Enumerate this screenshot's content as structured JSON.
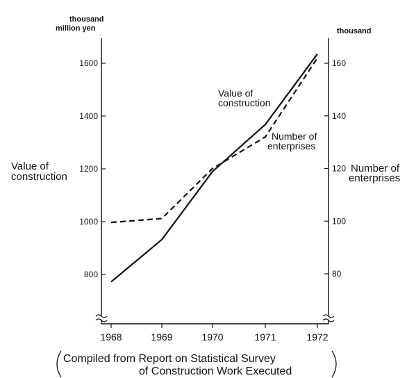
{
  "chart_data": {
    "type": "line",
    "categories": [
      "1968",
      "1969",
      "1970",
      "1971",
      "1972"
    ],
    "x": [
      1968,
      1969,
      1970,
      1971,
      1972
    ],
    "series": [
      {
        "name": "Value of construction",
        "axis": "left",
        "style": "solid",
        "values": [
          772,
          932,
          1190,
          1368,
          1635
        ]
      },
      {
        "name": "Number of enterprises",
        "axis": "right",
        "style": "dashed",
        "values": [
          99.5,
          101,
          120,
          132,
          162
        ]
      }
    ],
    "y_left": {
      "unit_lines": [
        "thousand",
        "million yen"
      ],
      "label_lines": [
        "Value of",
        "construction"
      ],
      "ticks": [
        800,
        1000,
        1200,
        1400,
        1600
      ],
      "range": [
        700,
        1700
      ],
      "broken": true
    },
    "y_right": {
      "unit_lines": [
        "thousand"
      ],
      "label_lines": [
        "Number of",
        "enterprises"
      ],
      "ticks": [
        80,
        100,
        120,
        140,
        160
      ],
      "range": [
        70,
        170
      ],
      "broken": true
    },
    "annotations": [
      {
        "series": "Value of construction",
        "lines": [
          "Value  of",
          "construction"
        ]
      },
      {
        "series": "Number of enterprises",
        "lines": [
          "Number  of",
          "enterprises"
        ]
      }
    ],
    "source_lines": [
      "Compiled from Report on Statistical Survey",
      "of Construction Work Executed"
    ],
    "grid": false,
    "legend": "none"
  }
}
